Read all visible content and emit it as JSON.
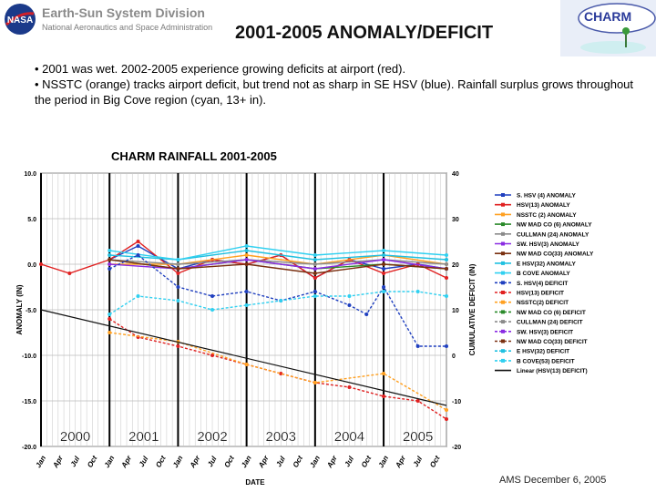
{
  "header": {
    "division": "Earth-Sun System Division",
    "agency": "National Aeronautics and Space Administration",
    "title": "2001-2005 ANOMALY/DEFICIT",
    "logo_right_text": "CHARM"
  },
  "bullets": [
    "• 2001 was wet.  2002-2005 experience growing deficits at airport (red).",
    "• NSSTC (orange) tracks airport deficit, but trend not as sharp in SE HSV (blue).  Rainfall surplus grows throughout the period in Big Cove region (cyan, 13+ in)."
  ],
  "footer": "AMS  December 6, 2005",
  "chart_data": {
    "type": "line",
    "title": "CHARM RAINFALL 2001-2005",
    "xlabel": "DATE",
    "ylabel_left": "ANOMALY (IN)",
    "ylabel_right": "CUMULATIVE DEFICIT (IN)",
    "ylim_left": [
      -20,
      10
    ],
    "ylim_right": [
      -20,
      40
    ],
    "yticks_left": [
      "10.0",
      "5.0",
      "0.0",
      "-5.0",
      "-10.0",
      "-15.0",
      "-20.0"
    ],
    "yticks_right": [
      "40",
      "30",
      "20",
      "10",
      "0",
      "-10",
      "-20"
    ],
    "x_month_labels": [
      "Jan",
      "Apr",
      "Jul",
      "Oct",
      "Jan",
      "Apr",
      "Jul",
      "Oct",
      "Jan",
      "Apr",
      "Jul",
      "Oct",
      "Jan",
      "Apr",
      "Jul",
      "Oct",
      "Jan",
      "Apr",
      "Jul",
      "Oct",
      "Jan",
      "Apr",
      "Jul",
      "Oct"
    ],
    "year_labels": [
      "2000",
      "2001",
      "2002",
      "2003",
      "2004",
      "2005"
    ],
    "grid": true,
    "legend_position": "right",
    "x_start": "2000-01",
    "x_end": "2005-12",
    "series": [
      {
        "name": "S. HSV (4) ANOMALY",
        "color": "#1f3fbf",
        "axis": "left",
        "x": [
          "2001-01",
          "2001-06",
          "2002-01",
          "2002-07",
          "2003-01",
          "2003-07",
          "2004-01",
          "2004-07",
          "2005-01",
          "2005-07",
          "2005-12"
        ],
        "values": [
          0.5,
          2.0,
          -0.5,
          0.5,
          0.0,
          1.0,
          -1.5,
          0.5,
          -0.5,
          0.0,
          -0.5
        ]
      },
      {
        "name": "HSV(13) ANOMALY",
        "color": "#e02020",
        "axis": "left",
        "x": [
          "2000-01",
          "2000-06",
          "2001-01",
          "2001-06",
          "2002-01",
          "2002-07",
          "2003-01",
          "2003-07",
          "2004-01",
          "2004-07",
          "2005-01",
          "2005-07",
          "2005-12"
        ],
        "values": [
          0.0,
          -1.0,
          0.5,
          2.5,
          -1.0,
          0.5,
          0.0,
          1.0,
          -1.5,
          0.5,
          -1.0,
          0.0,
          -1.5
        ]
      },
      {
        "name": "NSSTC (2) ANOMALY",
        "color": "#ffa020",
        "axis": "left",
        "x": [
          "2001-01",
          "2002-01",
          "2003-01",
          "2004-01",
          "2005-01",
          "2005-12"
        ],
        "values": [
          0.0,
          0.0,
          1.0,
          0.0,
          1.0,
          0.0
        ]
      },
      {
        "name": "NW MAD CO (6) ANOMALY",
        "color": "#2a8a2a",
        "axis": "left",
        "x": [
          "2001-01",
          "2002-01",
          "2003-01",
          "2004-01",
          "2005-01",
          "2005-12"
        ],
        "values": [
          0.5,
          -0.5,
          0.5,
          -0.5,
          0.0,
          -0.5
        ]
      },
      {
        "name": "CULLMAN (24) ANOMALY",
        "color": "#8a8a8a",
        "axis": "left",
        "x": [
          "2001-01",
          "2002-01",
          "2003-01",
          "2004-01",
          "2005-01",
          "2005-12"
        ],
        "values": [
          0.5,
          0.0,
          0.5,
          0.0,
          0.5,
          0.0
        ]
      },
      {
        "name": "SW. HSV(3) ANOMALY",
        "color": "#8a2be2",
        "axis": "left",
        "x": [
          "2001-01",
          "2002-01",
          "2003-01",
          "2004-01",
          "2005-01",
          "2005-12"
        ],
        "values": [
          0.0,
          -0.5,
          0.5,
          -0.5,
          0.5,
          -0.5
        ]
      },
      {
        "name": "NW MAD CO(33) ANOMALY",
        "color": "#7a3010",
        "axis": "left",
        "x": [
          "2001-01",
          "2002-01",
          "2003-01",
          "2004-01",
          "2005-01",
          "2005-12"
        ],
        "values": [
          0.5,
          -0.5,
          0.0,
          -1.0,
          0.0,
          -0.5
        ]
      },
      {
        "name": "E HSV(32) ANOMALY",
        "color": "#20c0e0",
        "axis": "left",
        "x": [
          "2001-01",
          "2002-01",
          "2003-01",
          "2004-01",
          "2005-01",
          "2005-12"
        ],
        "values": [
          1.0,
          0.5,
          1.5,
          0.5,
          1.0,
          0.5
        ]
      },
      {
        "name": "B COVE ANOMALY",
        "color": "#30d0f0",
        "axis": "left",
        "x": [
          "2001-01",
          "2002-01",
          "2003-01",
          "2004-01",
          "2005-01",
          "2005-12"
        ],
        "values": [
          1.5,
          0.5,
          2.0,
          1.0,
          1.5,
          1.0
        ]
      },
      {
        "name": "S. HSV(4) DEFICIT",
        "color": "#1f3fbf",
        "axis": "right",
        "x": [
          "2001-01",
          "2001-06",
          "2002-01",
          "2002-07",
          "2003-01",
          "2003-07",
          "2004-01",
          "2004-07",
          "2004-10",
          "2005-01",
          "2005-07",
          "2005-12"
        ],
        "values": [
          19,
          22,
          15,
          13,
          14,
          12,
          14,
          11,
          9,
          15,
          2,
          2
        ]
      },
      {
        "name": "HSV(13) DEFICIT",
        "color": "#e02020",
        "axis": "right",
        "x": [
          "2001-01",
          "2001-06",
          "2002-01",
          "2002-07",
          "2003-01",
          "2003-07",
          "2004-01",
          "2004-07",
          "2005-01",
          "2005-07",
          "2005-12"
        ],
        "values": [
          8,
          4,
          2,
          0,
          -2,
          -4,
          -6,
          -7,
          -9,
          -10,
          -14
        ]
      },
      {
        "name": "NSSTC(2) DEFICIT",
        "color": "#ffa020",
        "axis": "right",
        "x": [
          "2001-01",
          "2002-01",
          "2003-01",
          "2004-01",
          "2005-01",
          "2005-12"
        ],
        "values": [
          5,
          3,
          -2,
          -6,
          -4,
          -12
        ]
      },
      {
        "name": "NW MAD CO (6) DEFICIT",
        "color": "#2a8a2a",
        "axis": "right",
        "x": [],
        "values": []
      },
      {
        "name": "CULLMAN (24) DEFICIT",
        "color": "#8a8a8a",
        "axis": "right",
        "x": [],
        "values": []
      },
      {
        "name": "SW. HSV(3) DEFICIT",
        "color": "#8a2be2",
        "axis": "right",
        "x": [],
        "values": []
      },
      {
        "name": "NW MAD CO(33) DEFICIT",
        "color": "#7a3010",
        "axis": "right",
        "x": [],
        "values": []
      },
      {
        "name": "E HSV(32) DEFICIT",
        "color": "#20c0e0",
        "axis": "right",
        "x": [],
        "values": []
      },
      {
        "name": "B COVE(53) DEFICIT",
        "color": "#30d0f0",
        "axis": "right",
        "x": [
          "2001-01",
          "2001-06",
          "2002-01",
          "2002-07",
          "2003-01",
          "2003-07",
          "2004-01",
          "2004-07",
          "2005-01",
          "2005-07",
          "2005-12"
        ],
        "values": [
          9,
          13,
          12,
          10,
          11,
          12,
          13,
          13,
          14,
          14,
          13
        ]
      },
      {
        "name": "Linear (HSV(13) DEFICIT)",
        "color": "#111111",
        "axis": "right",
        "style": "linear",
        "x": [
          "2000-01",
          "2005-12"
        ],
        "values": [
          10,
          -11
        ]
      }
    ]
  }
}
